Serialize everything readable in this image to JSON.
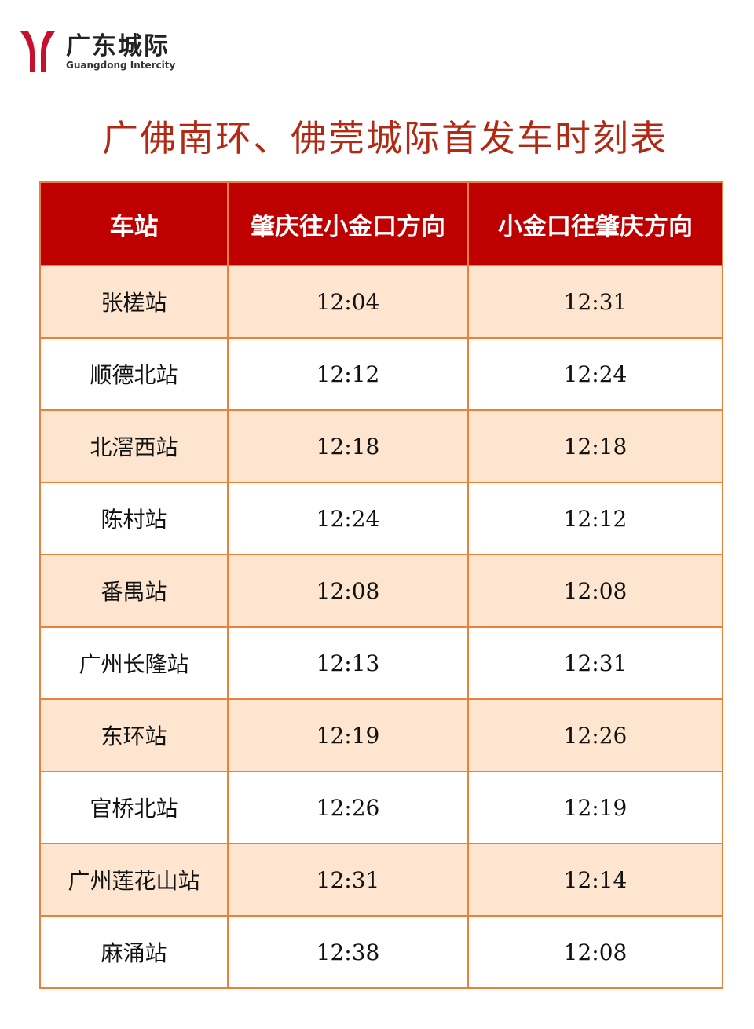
{
  "logo": {
    "cn": "广东城际",
    "en": "Guangdong Intercity",
    "brand_color": "#c8102e"
  },
  "title": "广佛南环、佛莞城际首发车时刻表",
  "table": {
    "headers": [
      "车站",
      "肇庆往小金口方向",
      "小金口往肇庆方向"
    ],
    "rows": [
      [
        "张槎站",
        "12:04",
        "12:31"
      ],
      [
        "顺德北站",
        "12:12",
        "12:24"
      ],
      [
        "北滘西站",
        "12:18",
        "12:18"
      ],
      [
        "陈村站",
        "12:24",
        "12:12"
      ],
      [
        "番禺站",
        "12:08",
        "12:08"
      ],
      [
        "广州长隆站",
        "12:13",
        "12:31"
      ],
      [
        "东环站",
        "12:19",
        "12:26"
      ],
      [
        "官桥北站",
        "12:26",
        "12:19"
      ],
      [
        "广州莲花山站",
        "12:31",
        "12:14"
      ],
      [
        "麻涌站",
        "12:38",
        "12:08"
      ]
    ]
  },
  "colors": {
    "header_bg": "#bf0000",
    "stripe_bg": "#fde5d0",
    "border": "#e8823a",
    "title": "#b22a14"
  }
}
